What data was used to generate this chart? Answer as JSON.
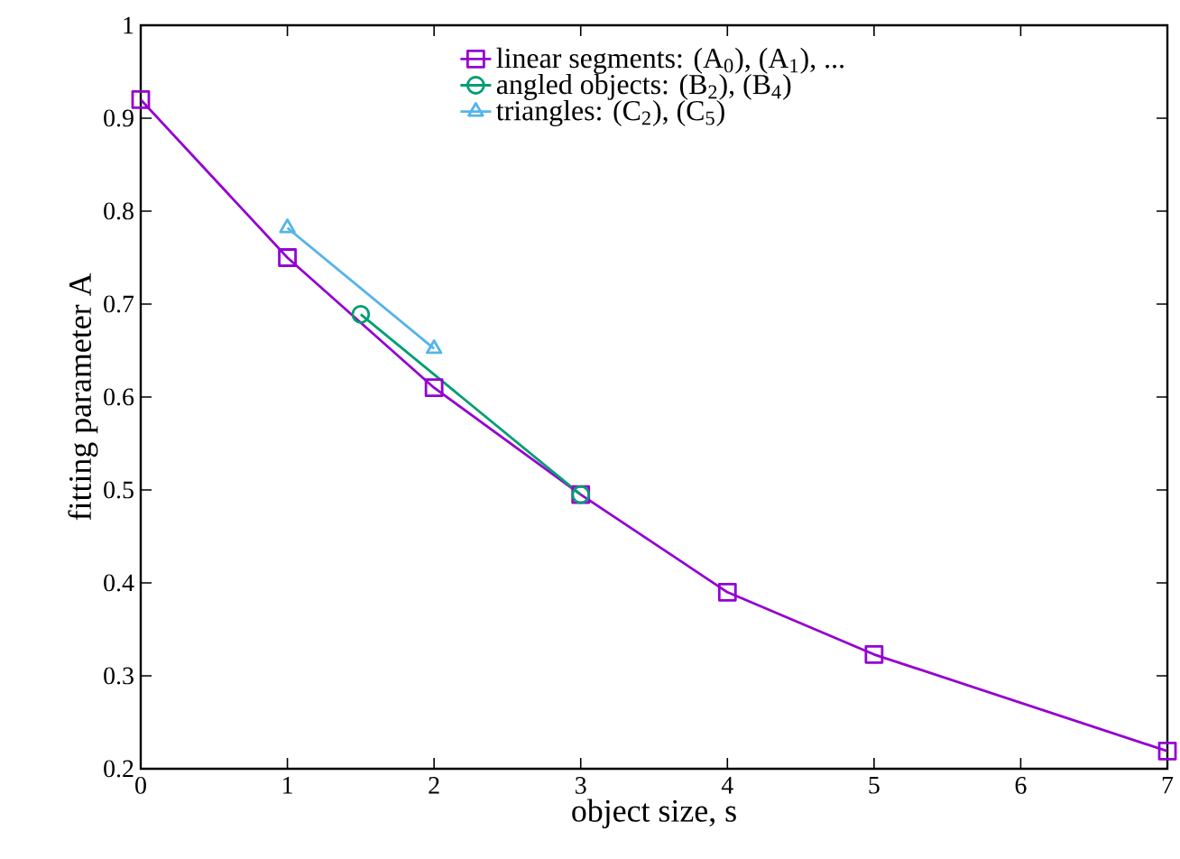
{
  "chart_data": {
    "type": "line",
    "xlabel": "object size, s",
    "ylabel": "fitting parameter A",
    "xlim": [
      0,
      7
    ],
    "xticks": [
      0,
      1,
      2,
      3,
      4,
      5,
      6,
      7
    ],
    "ylim": [
      0.2,
      1
    ],
    "yticks": [
      0.2,
      0.3,
      0.4,
      0.5,
      0.6,
      0.7,
      0.8,
      0.9,
      1
    ],
    "grid": false,
    "legend": "top",
    "series": [
      {
        "name": "linear segments: (A$_{0}$), (A$_{1}$), ...",
        "color": "#9400d3",
        "marker": "square",
        "x": [
          0,
          1,
          2,
          3,
          4,
          5,
          7
        ],
        "values": [
          0.92,
          0.75,
          0.61,
          0.495,
          0.39,
          0.323,
          0.219
        ]
      },
      {
        "name": "angled objects: (B$_{2}$), (B$_{4}$)",
        "color": "#009e73",
        "marker": "circle",
        "x": [
          1.5,
          3
        ],
        "values": [
          0.689,
          0.495
        ]
      },
      {
        "name": "triangles: (C$_{2}$), (C$_{5}$)",
        "color": "#56b4e9",
        "marker": "triangle",
        "x": [
          1,
          2
        ],
        "values": [
          0.782,
          0.652
        ]
      }
    ]
  }
}
